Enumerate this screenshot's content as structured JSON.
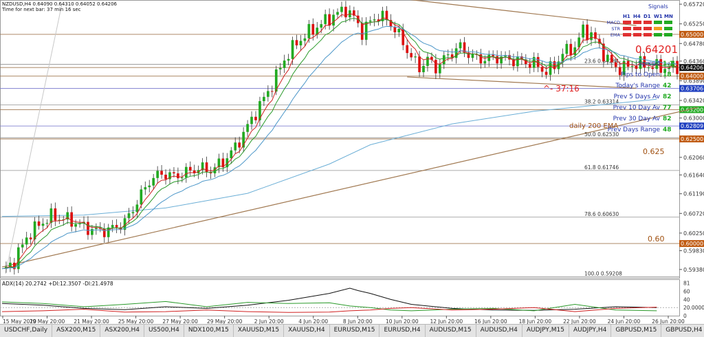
{
  "header": {
    "symbol_line": "NZDUSD,H4  0.64090 0.64310 0.64052 0.64206",
    "timer_line": "Time for next bar: 37 min 16 sec"
  },
  "panel": {
    "title": "Signals",
    "timeframes": [
      "H1",
      "H4",
      "D1",
      "W1",
      "MN"
    ],
    "rows": [
      {
        "name": "MACD",
        "colors": [
          "#e03030",
          "#e03030",
          "#e03030",
          "#22aa22",
          "#22aa22"
        ]
      },
      {
        "name": "STR",
        "colors": [
          "#e03030",
          "#e03030",
          "#e03030",
          "#f0a020",
          "#22aa22"
        ]
      },
      {
        "name": "EMA",
        "colors": [
          "#e03030",
          "#e03030",
          "#e03030",
          "#22aa22",
          "#22aa22"
        ]
      }
    ]
  },
  "info": {
    "big_price": "0.64201",
    "spread_label": "Spread",
    "spread_value": "1.1",
    "pips_label": "Pips to Open",
    "pips_value": "18",
    "range_label": "Today's Range",
    "range_value": "42",
    "prev5_label": "Prev 5 Days Av",
    "prev5_value": "82",
    "prev10_label": "Prev 10 Day Av",
    "prev10_value": "77",
    "prev30_label": "Prev 30 Day Av",
    "prev30_value": "82",
    "prevdays_label": "Prev Days Range",
    "prevdays_value": "48",
    "countdown": "^- 37:16"
  },
  "annotations": {
    "ema_label": "daily 200 EMA",
    "level_0625": "0.625",
    "level_060": "0.60"
  },
  "colors": {
    "bull": "#22aa22",
    "bear": "#dd1111",
    "ema_fast": "#d02020",
    "ema_mid": "#2a9a2a",
    "ema_slow": "#4b96c8",
    "ema_200": "#6aaed6",
    "trendline": "#a07850",
    "fib": "#909090",
    "level": "#a07850",
    "adx": "#111111",
    "plus_di": "#2a9a2a",
    "minus_di": "#d02020"
  },
  "chart_data": [
    {
      "type": "candlestick",
      "symbol": "NZDUSD",
      "timeframe": "H4",
      "ylim": [
        0.5918,
        0.6582
      ],
      "y_ticks": [
        "0.65720",
        "0.65250",
        "0.64780",
        "0.64360",
        "0.63890",
        "0.63420",
        "0.63000",
        "0.62530",
        "0.62060",
        "0.61640",
        "0.61190",
        "0.60720",
        "0.60250",
        "0.59830",
        "0.59380"
      ],
      "x_ticks": [
        "15 May 2020",
        "19 May 20:00",
        "21 May 20:00",
        "25 May 20:00",
        "27 May 20:00",
        "29 May 20:00",
        "2 Jun 20:00",
        "4 Jun 20:00",
        "8 Jun 20:00",
        "10 Jun 20:00",
        "12 Jun 20:00",
        "16 Jun 20:00",
        "18 Jun 20:00",
        "22 Jun 20:00",
        "24 Jun 20:00",
        "26 Jun 20:00"
      ],
      "close_path": [
        [
          0,
          0.5932
        ],
        [
          3,
          0.5958
        ],
        [
          6,
          0.6015
        ],
        [
          9,
          0.6045
        ],
        [
          12,
          0.6065
        ],
        [
          16,
          0.6058
        ],
        [
          20,
          0.604
        ],
        [
          23,
          0.603
        ],
        [
          26,
          0.6032
        ],
        [
          30,
          0.605
        ],
        [
          33,
          0.61
        ],
        [
          36,
          0.615
        ],
        [
          39,
          0.6168
        ],
        [
          42,
          0.616
        ],
        [
          45,
          0.617
        ],
        [
          48,
          0.618
        ],
        [
          51,
          0.6175
        ],
        [
          54,
          0.6195
        ],
        [
          57,
          0.623
        ],
        [
          60,
          0.628
        ],
        [
          63,
          0.633
        ],
        [
          66,
          0.638
        ],
        [
          69,
          0.644
        ],
        [
          72,
          0.648
        ],
        [
          75,
          0.6505
        ],
        [
          78,
          0.6525
        ],
        [
          81,
          0.6545
        ],
        [
          84,
          0.656
        ],
        [
          86,
          0.654
        ],
        [
          88,
          0.6505
        ],
        [
          90,
          0.653
        ],
        [
          92,
          0.6545
        ],
        [
          94,
          0.6535
        ],
        [
          96,
          0.6512
        ],
        [
          98,
          0.648
        ],
        [
          100,
          0.6445
        ],
        [
          102,
          0.642
        ],
        [
          104,
          0.644
        ],
        [
          106,
          0.642
        ],
        [
          109,
          0.645
        ],
        [
          112,
          0.647
        ],
        [
          115,
          0.6445
        ],
        [
          118,
          0.644
        ],
        [
          121,
          0.6445
        ],
        [
          124,
          0.644
        ],
        [
          127,
          0.6435
        ],
        [
          130,
          0.643
        ],
        [
          133,
          0.641
        ],
        [
          135,
          0.6425
        ],
        [
          137,
          0.6455
        ],
        [
          140,
          0.647
        ],
        [
          142,
          0.651
        ],
        [
          144,
          0.65
        ],
        [
          146,
          0.647
        ],
        [
          148,
          0.644
        ],
        [
          150,
          0.642
        ],
        [
          152,
          0.642
        ],
        [
          155,
          0.643
        ],
        [
          158,
          0.6425
        ],
        [
          161,
          0.642
        ],
        [
          163,
          0.6421
        ]
      ],
      "fibonacci": [
        {
          "label": "0.0",
          "value": 0.65853
        },
        {
          "label": "23.6",
          "value": 0.64284
        },
        {
          "label": "38.2",
          "value": 0.63314
        },
        {
          "label": "50.0",
          "value": 0.6253
        },
        {
          "label": "61.8",
          "value": 0.61746
        },
        {
          "label": "78.6",
          "value": 0.6063
        },
        {
          "label": "100.0",
          "value": 0.59208
        }
      ],
      "horizontal_levels": [
        {
          "value": 0.65,
          "label": "0.65000",
          "tag_color": "#c05a10"
        },
        {
          "value": 0.64,
          "label": "0.64000",
          "tag_color": "#c05a10"
        },
        {
          "value": 0.625,
          "label": "0.62500",
          "tag_color": "#c05a10"
        },
        {
          "value": 0.6,
          "label": "0.60000",
          "tag_color": "#c05a10"
        },
        {
          "value": 0.63706,
          "label": "0.63706",
          "tag_color": "#2040c0"
        },
        {
          "value": 0.632,
          "label": "0.63200",
          "tag_color": "#22aa22"
        },
        {
          "value": 0.62809,
          "label": "0.62809",
          "tag_color": "#2040c0"
        },
        {
          "value": 0.64206,
          "label": "0.64206",
          "tag_color": "#111111"
        }
      ],
      "trendlines": [
        {
          "from": [
            96,
            0.6587
          ],
          "to": [
            155,
            0.6521
          ]
        },
        {
          "from": [
            99,
            0.6398
          ],
          "to": [
            155,
            0.6371
          ]
        },
        {
          "from": [
            0,
            0.5944
          ],
          "to": [
            170,
            0.6325
          ]
        }
      ],
      "ema_200": [
        [
          0,
          0.6065
        ],
        [
          20,
          0.6068
        ],
        [
          40,
          0.6085
        ],
        [
          60,
          0.612
        ],
        [
          80,
          0.619
        ],
        [
          90,
          0.6236
        ],
        [
          110,
          0.6286
        ],
        [
          130,
          0.6316
        ],
        [
          150,
          0.6335
        ],
        [
          160,
          0.6345
        ]
      ]
    },
    {
      "type": "line",
      "title": "ADX(14) 20.2742 +DI:12.3507 -DI:21.4978",
      "ylim": [
        0,
        90
      ],
      "y_ticks": [
        "81",
        "60",
        "40",
        "20.0000",
        "0"
      ],
      "series": [
        {
          "name": "ADX(14)",
          "values": [
            [
              0,
              30
            ],
            [
              10,
              26
            ],
            [
              20,
              18
            ],
            [
              30,
              15
            ],
            [
              40,
              22
            ],
            [
              50,
              18
            ],
            [
              60,
              26
            ],
            [
              70,
              38
            ],
            [
              80,
              55
            ],
            [
              85,
              68
            ],
            [
              87,
              62
            ],
            [
              90,
              55
            ],
            [
              95,
              40
            ],
            [
              100,
              28
            ],
            [
              110,
              18
            ],
            [
              120,
              14
            ],
            [
              130,
              13
            ],
            [
              140,
              16
            ],
            [
              150,
              22
            ],
            [
              160,
              20
            ]
          ]
        },
        {
          "name": "+DI",
          "values": [
            [
              0,
              34
            ],
            [
              10,
              30
            ],
            [
              20,
              22
            ],
            [
              30,
              28
            ],
            [
              40,
              35
            ],
            [
              50,
              22
            ],
            [
              60,
              33
            ],
            [
              70,
              30
            ],
            [
              80,
              32
            ],
            [
              85,
              24
            ],
            [
              90,
              20
            ],
            [
              95,
              14
            ],
            [
              100,
              12
            ],
            [
              110,
              16
            ],
            [
              120,
              18
            ],
            [
              130,
              12
            ],
            [
              140,
              28
            ],
            [
              150,
              14
            ],
            [
              160,
              12
            ]
          ]
        },
        {
          "name": "-DI",
          "values": [
            [
              0,
              10
            ],
            [
              10,
              12
            ],
            [
              20,
              16
            ],
            [
              30,
              9
            ],
            [
              40,
              10
            ],
            [
              50,
              14
            ],
            [
              60,
              10
            ],
            [
              70,
              8
            ],
            [
              80,
              9
            ],
            [
              85,
              12
            ],
            [
              90,
              14
            ],
            [
              95,
              18
            ],
            [
              100,
              20
            ],
            [
              110,
              14
            ],
            [
              120,
              16
            ],
            [
              130,
              20
            ],
            [
              140,
              10
            ],
            [
              150,
              18
            ],
            [
              160,
              21
            ]
          ]
        }
      ]
    }
  ],
  "tabs": [
    "USDCHF,Daily",
    "ASX200,M15",
    "ASX200,H4",
    "US500,H4",
    "NDX100,M15",
    "XAUUSD,M15",
    "XAUUSD,H4",
    "EURUSD,M15",
    "EURUSD,H4",
    "AUDUSD,M15",
    "AUDUSD,H4",
    "AUDJPY,M15",
    "AUDJPY,H4",
    "GBPUSD,M15",
    "GBPUSD,H4",
    "NZDUSD,M15",
    "NZDUSD,H4"
  ],
  "active_tab": "NZDUSD,H4"
}
